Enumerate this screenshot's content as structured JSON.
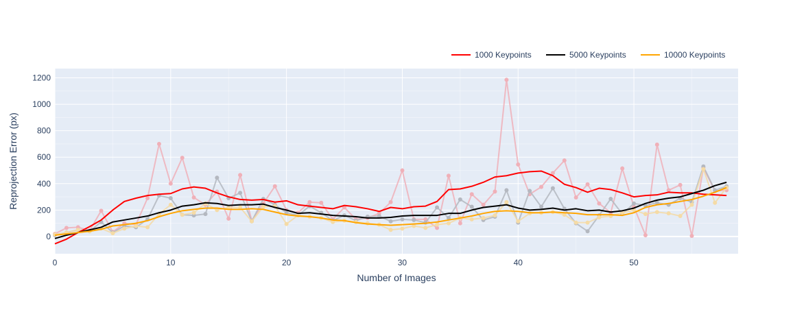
{
  "chart_data": {
    "type": "line",
    "title": "",
    "xlabel": "Number of Images",
    "ylabel": "Reprojection Error (px)",
    "xlim": [
      0,
      59
    ],
    "ylim": [
      -130,
      1270
    ],
    "xticks": [
      0,
      10,
      20,
      30,
      40,
      50
    ],
    "yticks": [
      0,
      200,
      400,
      600,
      800,
      1000,
      1200
    ],
    "grid": true,
    "legend_position": "top-right",
    "background_color": "#e5ecf6",
    "x": [
      0,
      1,
      2,
      3,
      4,
      5,
      6,
      7,
      8,
      9,
      10,
      11,
      12,
      13,
      14,
      15,
      16,
      17,
      18,
      19,
      20,
      21,
      22,
      23,
      24,
      25,
      26,
      27,
      28,
      29,
      30,
      31,
      32,
      33,
      34,
      35,
      36,
      37,
      38,
      39,
      40,
      41,
      42,
      43,
      44,
      45,
      46,
      47,
      48,
      49,
      50,
      51,
      52,
      53,
      54,
      55,
      56,
      57,
      58
    ],
    "series": [
      {
        "name": "1000 Keypoints",
        "color": "#ff0000",
        "raw_color": "#f0b0b8",
        "raw": [
          20,
          65,
          70,
          45,
          195,
          35,
          100,
          90,
          290,
          700,
          400,
          595,
          295,
          240,
          340,
          135,
          465,
          120,
          250,
          380,
          200,
          180,
          260,
          255,
          130,
          220,
          130,
          140,
          175,
          260,
          500,
          130,
          130,
          65,
          460,
          100,
          320,
          240,
          340,
          1185,
          545,
          320,
          375,
          480,
          575,
          295,
          395,
          250,
          180,
          515,
          225,
          10,
          695,
          350,
          390,
          5,
          520,
          345,
          350
        ],
        "smoothed": [
          -55,
          -20,
          30,
          75,
          125,
          200,
          265,
          290,
          310,
          320,
          325,
          360,
          375,
          365,
          330,
          300,
          280,
          275,
          280,
          260,
          270,
          240,
          230,
          220,
          210,
          235,
          225,
          210,
          190,
          220,
          210,
          225,
          230,
          265,
          355,
          360,
          380,
          410,
          450,
          460,
          480,
          490,
          495,
          460,
          395,
          370,
          335,
          365,
          355,
          330,
          300,
          310,
          315,
          335,
          330,
          330,
          320,
          315,
          310
        ]
      },
      {
        "name": "5000 Keypoints",
        "color": "#000000",
        "raw_color": "#b4b8c0",
        "raw": [
          10,
          30,
          50,
          40,
          110,
          30,
          80,
          70,
          130,
          310,
          290,
          165,
          160,
          170,
          445,
          290,
          330,
          115,
          285,
          240,
          180,
          160,
          230,
          180,
          120,
          160,
          120,
          150,
          155,
          115,
          130,
          125,
          105,
          220,
          140,
          280,
          225,
          125,
          150,
          350,
          105,
          345,
          225,
          365,
          210,
          100,
          40,
          160,
          285,
          170,
          250,
          235,
          255,
          240,
          290,
          260,
          530,
          350,
          380
        ],
        "smoothed": [
          -15,
          10,
          30,
          50,
          70,
          110,
          125,
          140,
          155,
          180,
          200,
          230,
          240,
          255,
          250,
          235,
          240,
          240,
          245,
          220,
          200,
          175,
          180,
          170,
          160,
          155,
          150,
          140,
          140,
          145,
          155,
          160,
          160,
          160,
          175,
          175,
          200,
          220,
          230,
          240,
          215,
          200,
          205,
          215,
          200,
          210,
          195,
          200,
          185,
          195,
          215,
          250,
          275,
          290,
          300,
          325,
          350,
          385,
          410
        ]
      },
      {
        "name": "10000 Keypoints",
        "color": "#ffa500",
        "raw_color": "#f5dba6",
        "raw": [
          15,
          30,
          50,
          40,
          60,
          25,
          60,
          80,
          70,
          170,
          240,
          165,
          180,
          250,
          200,
          220,
          220,
          115,
          225,
          230,
          95,
          160,
          150,
          140,
          110,
          120,
          110,
          100,
          90,
          50,
          60,
          80,
          65,
          90,
          100,
          140,
          130,
          140,
          160,
          260,
          115,
          175,
          180,
          185,
          165,
          105,
          105,
          145,
          155,
          180,
          200,
          170,
          185,
          175,
          155,
          240,
          510,
          255,
          370
        ],
        "smoothed": [
          10,
          20,
          30,
          40,
          55,
          80,
          90,
          100,
          120,
          150,
          175,
          195,
          205,
          215,
          215,
          205,
          205,
          210,
          205,
          185,
          165,
          155,
          150,
          140,
          125,
          120,
          105,
          95,
          90,
          85,
          90,
          95,
          100,
          110,
          125,
          140,
          155,
          175,
          190,
          195,
          190,
          180,
          180,
          185,
          180,
          175,
          165,
          165,
          165,
          160,
          180,
          220,
          240,
          250,
          265,
          280,
          305,
          335,
          370
        ]
      }
    ]
  }
}
